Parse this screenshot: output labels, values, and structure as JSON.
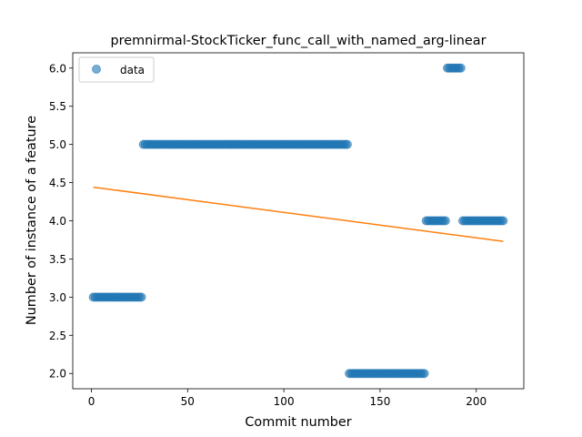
{
  "chart_data": {
    "type": "scatter",
    "title": "premnirmal-StockTicker_func_call_with_named_arg-linear",
    "xlabel": "Commit number",
    "ylabel": "Number of instance of a feature",
    "xlim": [
      -9.7,
      224.7
    ],
    "ylim": [
      1.8,
      6.2
    ],
    "xticks": [
      0,
      50,
      100,
      150,
      200
    ],
    "yticks": [
      2.0,
      2.5,
      3.0,
      3.5,
      4.0,
      4.5,
      5.0,
      5.5,
      6.0
    ],
    "grid": false,
    "legend_position": "top-left",
    "scatter_color": "#1f77b4",
    "line_color": "#ff7f0e",
    "series": [
      {
        "name": "data",
        "kind": "scatter",
        "segments": [
          {
            "x_start": 1,
            "x_end": 26,
            "y": 3.0
          },
          {
            "x_start": 27,
            "x_end": 133,
            "y": 5.0
          },
          {
            "x_start": 134,
            "x_end": 173,
            "y": 2.0
          },
          {
            "x_start": 174,
            "x_end": 184,
            "y": 4.0
          },
          {
            "x_start": 185,
            "x_end": 192,
            "y": 6.0
          },
          {
            "x_start": 193,
            "x_end": 214,
            "y": 4.0
          }
        ]
      },
      {
        "kind": "line",
        "x": [
          1,
          214
        ],
        "y": [
          4.44,
          3.73
        ]
      }
    ]
  }
}
